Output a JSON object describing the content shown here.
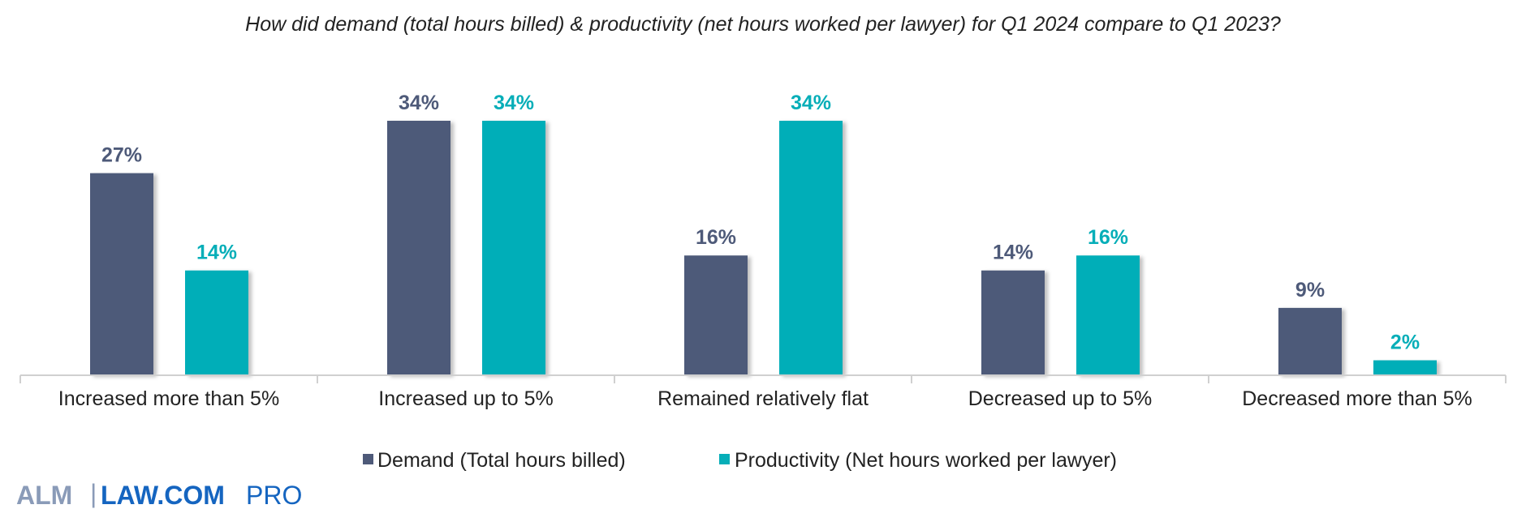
{
  "chart_data": {
    "type": "bar",
    "title": "How did demand (total hours billed) & productivity (net hours worked per lawyer) for Q1 2024 compare to Q1 2023?",
    "categories": [
      "Increased more than 5%",
      "Increased up to 5%",
      "Remained relatively flat",
      "Decreased up to 5%",
      "Decreased more than 5%"
    ],
    "series": [
      {
        "name": "Demand (Total hours billed)",
        "values": [
          27,
          34,
          16,
          14,
          9
        ],
        "labels": [
          "27%",
          "34%",
          "16%",
          "14%",
          "9%"
        ],
        "color": "#4e5a79"
      },
      {
        "name": "Productivity (Net hours worked per lawyer)",
        "values": [
          14,
          34,
          34,
          16,
          2
        ],
        "labels": [
          "14%",
          "34%",
          "34%",
          "16%",
          "2%"
        ],
        "color": "#06aeb8"
      }
    ],
    "ylim": [
      0,
      34
    ],
    "grid": false,
    "legend_position": "bottom",
    "data_label_color_demand": "#4e5a79",
    "data_label_color_productivity": "#06aeb8"
  },
  "logo": {
    "alm": "ALM",
    "separator": "|",
    "lawcom": "LAW.COM",
    "pro": "PRO",
    "colors": {
      "alm": "#8a9bb8",
      "lawcom": "#1565c0",
      "pro": "#1565c0"
    }
  }
}
